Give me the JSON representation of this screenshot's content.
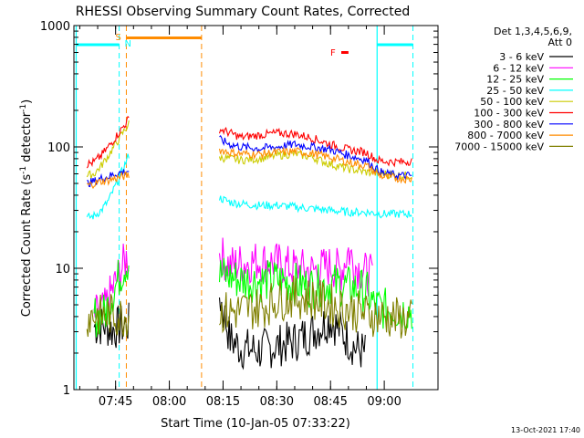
{
  "chart_data": {
    "type": "line",
    "title": "RHESSI Observing Summary Count Rates, Corrected",
    "xlabel": "Start Time (10-Jan-05 07:33:22)",
    "ylabel_parts": [
      "Corrected Count Rate (s",
      "-1",
      " detector",
      "-1",
      ")"
    ],
    "y_scale": "log",
    "ylim": [
      1,
      1000
    ],
    "xlim": [
      "07:33:22",
      "09:15:00"
    ],
    "y_ticks": [
      {
        "value": 1,
        "label": "1"
      },
      {
        "value": 10,
        "label": "10"
      },
      {
        "value": 100,
        "label": "100"
      },
      {
        "value": 1000,
        "label": "1000"
      }
    ],
    "x_ticks": [
      {
        "time": "07:45",
        "label": "07:45"
      },
      {
        "time": "08:00",
        "label": "08:00"
      },
      {
        "time": "08:15",
        "label": "08:15"
      },
      {
        "time": "08:30",
        "label": "08:30"
      },
      {
        "time": "08:45",
        "label": "08:45"
      },
      {
        "time": "09:00",
        "label": "09:00"
      }
    ],
    "legend_header": [
      "Det 1,3,4,5,6,9,",
      "Att 0"
    ],
    "legend_position": "right",
    "series": [
      {
        "name": "3 - 6 keV",
        "color": "#000000",
        "points": [
          [
            "07:39",
            3.3
          ],
          [
            "07:42",
            3.4
          ],
          [
            "07:44",
            3.1
          ],
          [
            "07:46",
            3.3
          ],
          [
            "07:49",
            3.5
          ],
          [
            "08:14",
            6.0
          ],
          [
            "08:17",
            2.6
          ],
          [
            "08:20",
            2.2
          ],
          [
            "08:25",
            2.1
          ],
          [
            "08:30",
            2.3
          ],
          [
            "08:35",
            2.5
          ],
          [
            "08:40",
            3.0
          ],
          [
            "08:45",
            3.8
          ],
          [
            "08:48",
            3.0
          ],
          [
            "08:52",
            2.2
          ],
          [
            "08:55",
            2.0
          ]
        ]
      },
      {
        "name": "6 - 12 keV",
        "color": "#ff00ff",
        "points": [
          [
            "07:39",
            4.0
          ],
          [
            "07:42",
            4.6
          ],
          [
            "07:44",
            6.5
          ],
          [
            "07:46",
            9.0
          ],
          [
            "07:48",
            12.0
          ],
          [
            "07:49",
            12.5
          ],
          [
            "08:14",
            13.0
          ],
          [
            "08:17",
            10.5
          ],
          [
            "08:20",
            11.0
          ],
          [
            "08:25",
            11.5
          ],
          [
            "08:30",
            11.0
          ],
          [
            "08:35",
            10.0
          ],
          [
            "08:40",
            9.5
          ],
          [
            "08:45",
            10.5
          ],
          [
            "08:48",
            9.5
          ],
          [
            "08:50",
            14.0
          ],
          [
            "08:52",
            10.5
          ],
          [
            "08:55",
            9.0
          ],
          [
            "08:57",
            8.5
          ]
        ]
      },
      {
        "name": "12 - 25 keV",
        "color": "#00ff00",
        "points": [
          [
            "07:39",
            4.0
          ],
          [
            "07:42",
            4.2
          ],
          [
            "07:44",
            6.0
          ],
          [
            "07:46",
            8.5
          ],
          [
            "07:48",
            11.0
          ],
          [
            "07:49",
            11.5
          ],
          [
            "08:14",
            9.0
          ],
          [
            "08:17",
            8.5
          ],
          [
            "08:20",
            8.0
          ],
          [
            "08:25",
            7.8
          ],
          [
            "08:30",
            8.0
          ],
          [
            "08:35",
            7.5
          ],
          [
            "08:40",
            7.0
          ],
          [
            "08:45",
            7.5
          ],
          [
            "08:50",
            7.0
          ],
          [
            "08:55",
            6.5
          ],
          [
            "08:57",
            5.0
          ],
          [
            "09:00",
            4.6
          ],
          [
            "09:05",
            4.5
          ],
          [
            "09:08",
            4.5
          ]
        ]
      },
      {
        "name": "25 - 50 keV",
        "color": "#00ffff",
        "points": [
          [
            "07:37",
            26
          ],
          [
            "07:39",
            27
          ],
          [
            "07:41",
            30
          ],
          [
            "07:43",
            36
          ],
          [
            "07:45",
            48
          ],
          [
            "07:47",
            65
          ],
          [
            "07:49",
            90
          ],
          [
            "08:14",
            38
          ],
          [
            "08:17",
            35
          ],
          [
            "08:20",
            34
          ],
          [
            "08:25",
            33
          ],
          [
            "08:30",
            33
          ],
          [
            "08:35",
            32
          ],
          [
            "08:40",
            31
          ],
          [
            "08:45",
            30
          ],
          [
            "08:50",
            29
          ],
          [
            "08:55",
            29
          ],
          [
            "09:00",
            28
          ],
          [
            "09:05",
            28
          ],
          [
            "09:08",
            28
          ]
        ]
      },
      {
        "name": "50 - 100 keV",
        "color": "#cccc00",
        "points": [
          [
            "07:37",
            58
          ],
          [
            "07:39",
            60
          ],
          [
            "07:41",
            70
          ],
          [
            "07:43",
            85
          ],
          [
            "07:45",
            105
          ],
          [
            "07:47",
            130
          ],
          [
            "07:49",
            160
          ],
          [
            "08:14",
            82
          ],
          [
            "08:17",
            80
          ],
          [
            "08:20",
            78
          ],
          [
            "08:25",
            80
          ],
          [
            "08:30",
            85
          ],
          [
            "08:35",
            88
          ],
          [
            "08:40",
            82
          ],
          [
            "08:45",
            72
          ],
          [
            "08:50",
            66
          ],
          [
            "08:55",
            62
          ],
          [
            "09:00",
            60
          ],
          [
            "09:05",
            58
          ],
          [
            "09:08",
            58
          ]
        ]
      },
      {
        "name": "100 - 300 keV",
        "color": "#ff0000",
        "points": [
          [
            "07:37",
            72
          ],
          [
            "07:39",
            75
          ],
          [
            "07:41",
            85
          ],
          [
            "07:43",
            100
          ],
          [
            "07:45",
            120
          ],
          [
            "07:47",
            145
          ],
          [
            "07:49",
            175
          ],
          [
            "08:14",
            140
          ],
          [
            "08:17",
            130
          ],
          [
            "08:20",
            120
          ],
          [
            "08:25",
            125
          ],
          [
            "08:30",
            130
          ],
          [
            "08:35",
            128
          ],
          [
            "08:40",
            118
          ],
          [
            "08:45",
            105
          ],
          [
            "08:50",
            95
          ],
          [
            "08:55",
            90
          ],
          [
            "08:58",
            78
          ],
          [
            "09:00",
            76
          ],
          [
            "09:05",
            75
          ],
          [
            "09:08",
            77
          ]
        ]
      },
      {
        "name": "300 - 800 keV",
        "color": "#0000ff",
        "points": [
          [
            "07:37",
            50
          ],
          [
            "07:39",
            52
          ],
          [
            "07:41",
            55
          ],
          [
            "07:43",
            57
          ],
          [
            "07:45",
            60
          ],
          [
            "07:47",
            62
          ],
          [
            "07:49",
            64
          ],
          [
            "08:14",
            115
          ],
          [
            "08:17",
            105
          ],
          [
            "08:20",
            100
          ],
          [
            "08:25",
            97
          ],
          [
            "08:30",
            100
          ],
          [
            "08:35",
            105
          ],
          [
            "08:40",
            100
          ],
          [
            "08:45",
            95
          ],
          [
            "08:50",
            85
          ],
          [
            "08:55",
            78
          ],
          [
            "08:58",
            65
          ],
          [
            "09:00",
            60
          ],
          [
            "09:05",
            58
          ],
          [
            "09:08",
            58
          ]
        ]
      },
      {
        "name": "800 - 7000 keV",
        "color": "#ff8c00",
        "points": [
          [
            "07:37",
            48
          ],
          [
            "07:39",
            50
          ],
          [
            "07:41",
            52
          ],
          [
            "07:43",
            53
          ],
          [
            "07:45",
            55
          ],
          [
            "07:47",
            57
          ],
          [
            "07:49",
            59
          ],
          [
            "08:14",
            95
          ],
          [
            "08:17",
            90
          ],
          [
            "08:20",
            88
          ],
          [
            "08:25",
            87
          ],
          [
            "08:30",
            90
          ],
          [
            "08:35",
            92
          ],
          [
            "08:40",
            88
          ],
          [
            "08:45",
            82
          ],
          [
            "08:50",
            75
          ],
          [
            "08:55",
            70
          ],
          [
            "08:58",
            60
          ],
          [
            "09:00",
            56
          ],
          [
            "09:05",
            55
          ],
          [
            "09:08",
            54
          ]
        ]
      },
      {
        "name": "7000 - 15000 keV",
        "color": "#808000",
        "points": [
          [
            "07:37",
            4.0
          ],
          [
            "07:39",
            4.1
          ],
          [
            "07:42",
            4.0
          ],
          [
            "07:44",
            4.2
          ],
          [
            "07:46",
            4.0
          ],
          [
            "07:49",
            4.1
          ],
          [
            "08:14",
            4.3
          ],
          [
            "08:18",
            4.4
          ],
          [
            "08:22",
            4.6
          ],
          [
            "08:26",
            4.8
          ],
          [
            "08:30",
            5.5
          ],
          [
            "08:35",
            5.8
          ],
          [
            "08:40",
            5.6
          ],
          [
            "08:45",
            5.0
          ],
          [
            "08:50",
            4.6
          ],
          [
            "08:55",
            4.2
          ],
          [
            "09:00",
            4.0
          ],
          [
            "09:05",
            3.8
          ],
          [
            "09:08",
            3.7
          ]
        ]
      }
    ],
    "flags": {
      "saa_label": "S",
      "night_label": "N",
      "flare_label": "F",
      "night_bars": [
        [
          "07:34",
          "07:46"
        ],
        [
          "08:58",
          "09:08"
        ]
      ],
      "saa_bar": [
        "07:48",
        "08:09"
      ],
      "flare_mark": [
        "08:48",
        "08:50"
      ],
      "dashed_lines": [
        {
          "time": "07:46",
          "color": "#00ffff"
        },
        {
          "time": "07:48",
          "color": "#ff8c00"
        },
        {
          "time": "08:09",
          "color": "#ff8c00"
        },
        {
          "time": "09:08",
          "color": "#00ffff"
        }
      ],
      "solid_lines": [
        {
          "time": "07:34",
          "color": "#00ffff"
        },
        {
          "time": "08:58",
          "color": "#00ffff"
        }
      ]
    }
  },
  "footer_date": "13-Oct-2021 17:40"
}
